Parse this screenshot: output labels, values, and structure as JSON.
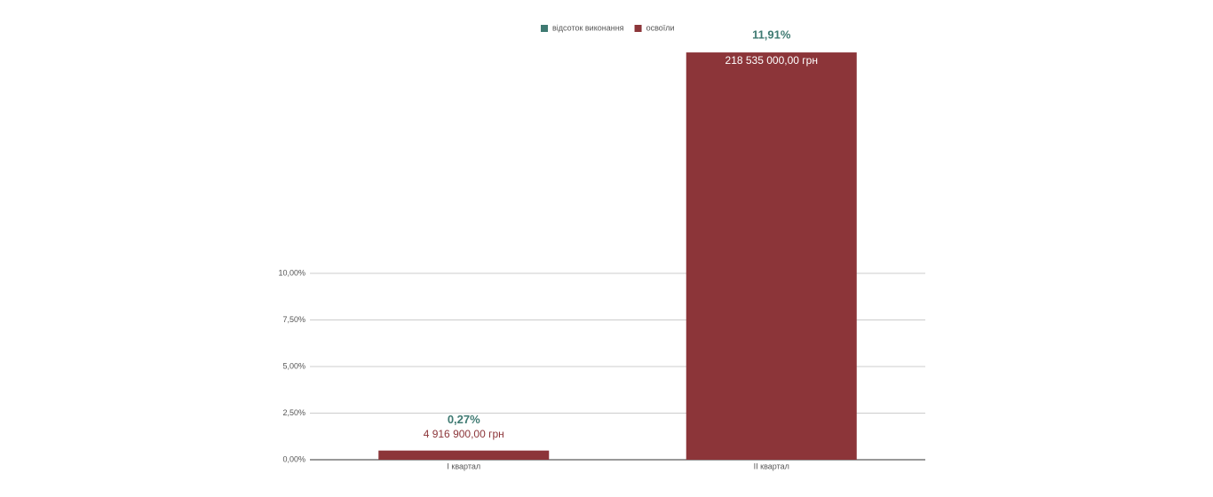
{
  "chart_data": {
    "type": "bar",
    "categories": [
      "I квартал",
      "II квартал"
    ],
    "series": [
      {
        "name": "відсоток виконання",
        "color": "#3f7a72",
        "values": [
          0.27,
          11.91
        ],
        "value_labels": [
          "0,27%",
          "11,91%"
        ]
      },
      {
        "name": "освоїли",
        "color": "#8c3539",
        "axis": "y2",
        "values": [
          4916900,
          218535000
        ],
        "value_labels": [
          "4 916 900,00 грн",
          "218 535 000,00 грн"
        ]
      }
    ],
    "ylim": [
      0,
      22
    ],
    "yticks": [
      {
        "value": 0,
        "label": "0,00%"
      },
      {
        "value": 2.5,
        "label": "2,50%"
      },
      {
        "value": 5,
        "label": "5,00%"
      },
      {
        "value": 7.5,
        "label": "7,50%"
      },
      {
        "value": 10,
        "label": "10,00%"
      }
    ],
    "y2lim": [
      0,
      220000000
    ],
    "grid": true,
    "legend": "top"
  }
}
